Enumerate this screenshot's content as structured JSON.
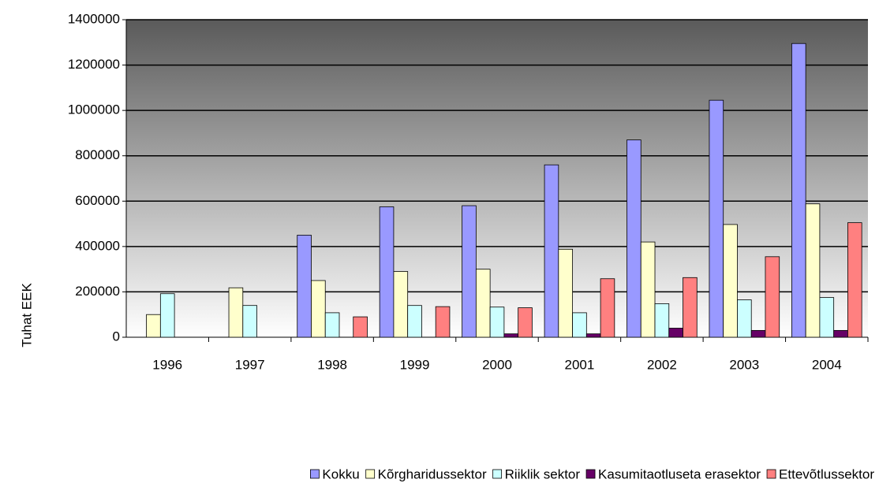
{
  "chart_data": {
    "type": "bar",
    "y_label": "Tuhat EEK",
    "categories": [
      "1996",
      "1997",
      "1998",
      "1999",
      "2000",
      "2001",
      "2002",
      "2003",
      "2004"
    ],
    "series": [
      {
        "name": "Kokku",
        "color": "#9999ff",
        "values": [
          null,
          null,
          450000,
          575000,
          580000,
          760000,
          870000,
          1045000,
          1295000
        ]
      },
      {
        "name": "Kõrgharidussektor",
        "color": "#ffffcc",
        "values": [
          100000,
          218000,
          250000,
          290000,
          300000,
          388000,
          420000,
          497000,
          588000
        ]
      },
      {
        "name": "Riiklik sektor",
        "color": "#ccffff",
        "values": [
          192000,
          140000,
          108000,
          140000,
          133000,
          108000,
          148000,
          165000,
          175000
        ]
      },
      {
        "name": "Kasumitaotluseta erasektor",
        "color": "#660066",
        "values": [
          null,
          null,
          null,
          null,
          15000,
          15000,
          40000,
          30000,
          30000
        ]
      },
      {
        "name": "Ettevõtlussektor",
        "color": "#ff8080",
        "values": [
          null,
          null,
          90000,
          135000,
          130000,
          258000,
          263000,
          355000,
          505000
        ]
      }
    ],
    "ylim": [
      0,
      1400000
    ],
    "yticks": [
      0,
      200000,
      400000,
      600000,
      800000,
      1000000,
      1200000,
      1400000
    ],
    "grid": true,
    "legend": "bottom"
  }
}
